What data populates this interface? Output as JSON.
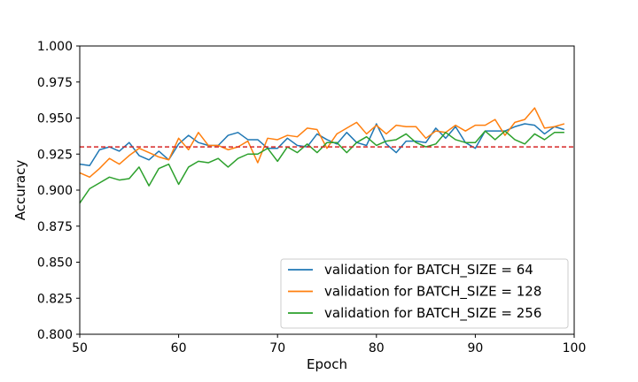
{
  "chart_data": {
    "type": "line",
    "title": "",
    "xlabel": "Epoch",
    "ylabel": "Accuracy",
    "xlim": [
      50,
      100
    ],
    "ylim": [
      0.8,
      1.0
    ],
    "xticks": [
      "50",
      "60",
      "70",
      "80",
      "90",
      "100"
    ],
    "yticks": [
      "0.800",
      "0.825",
      "0.850",
      "0.875",
      "0.900",
      "0.925",
      "0.950",
      "0.975",
      "1.000"
    ],
    "grid": false,
    "legend_position": "lower-right",
    "x": [
      50,
      51,
      52,
      53,
      54,
      55,
      56,
      57,
      58,
      59,
      60,
      61,
      62,
      63,
      64,
      65,
      66,
      67,
      68,
      69,
      70,
      71,
      72,
      73,
      74,
      75,
      76,
      77,
      78,
      79,
      80,
      81,
      82,
      83,
      84,
      85,
      86,
      87,
      88,
      89,
      90,
      91,
      92,
      93,
      94,
      95,
      96,
      97,
      98,
      99
    ],
    "series": [
      {
        "name": "validation for BATCH_SIZE = 64",
        "color": "#1f77b4",
        "values": [
          0.918,
          0.917,
          0.928,
          0.93,
          0.927,
          0.933,
          0.924,
          0.921,
          0.927,
          0.921,
          0.932,
          0.938,
          0.933,
          0.931,
          0.931,
          0.938,
          0.94,
          0.935,
          0.935,
          0.929,
          0.929,
          0.936,
          0.931,
          0.93,
          0.939,
          0.935,
          0.932,
          0.94,
          0.933,
          0.931,
          0.946,
          0.932,
          0.926,
          0.934,
          0.934,
          0.933,
          0.943,
          0.936,
          0.944,
          0.933,
          0.929,
          0.941,
          0.941,
          0.941,
          0.944,
          0.946,
          0.945,
          0.939,
          0.944,
          0.942
        ]
      },
      {
        "name": "validation for BATCH_SIZE = 128",
        "color": "#ff7f0e",
        "values": [
          0.912,
          0.909,
          0.915,
          0.922,
          0.918,
          0.924,
          0.929,
          0.926,
          0.923,
          0.921,
          0.936,
          0.928,
          0.94,
          0.931,
          0.931,
          0.928,
          0.93,
          0.934,
          0.919,
          0.936,
          0.935,
          0.938,
          0.937,
          0.943,
          0.942,
          0.929,
          0.939,
          0.943,
          0.947,
          0.939,
          0.945,
          0.939,
          0.945,
          0.944,
          0.944,
          0.936,
          0.941,
          0.94,
          0.945,
          0.941,
          0.945,
          0.945,
          0.949,
          0.938,
          0.947,
          0.949,
          0.957,
          0.943,
          0.944,
          0.946
        ]
      },
      {
        "name": "validation for BATCH_SIZE = 256",
        "color": "#2ca02c",
        "values": [
          0.891,
          0.901,
          0.905,
          0.909,
          0.907,
          0.908,
          0.916,
          0.903,
          0.915,
          0.918,
          0.904,
          0.916,
          0.92,
          0.919,
          0.922,
          0.916,
          0.922,
          0.925,
          0.925,
          0.929,
          0.92,
          0.93,
          0.926,
          0.932,
          0.926,
          0.933,
          0.933,
          0.926,
          0.933,
          0.937,
          0.931,
          0.934,
          0.935,
          0.939,
          0.933,
          0.93,
          0.932,
          0.94,
          0.935,
          0.933,
          0.933,
          0.941,
          0.935,
          0.941,
          0.935,
          0.932,
          0.939,
          0.935,
          0.94,
          0.94
        ]
      }
    ],
    "reference_line": {
      "y": 0.93,
      "color": "#d62728",
      "style": "dashed"
    }
  }
}
